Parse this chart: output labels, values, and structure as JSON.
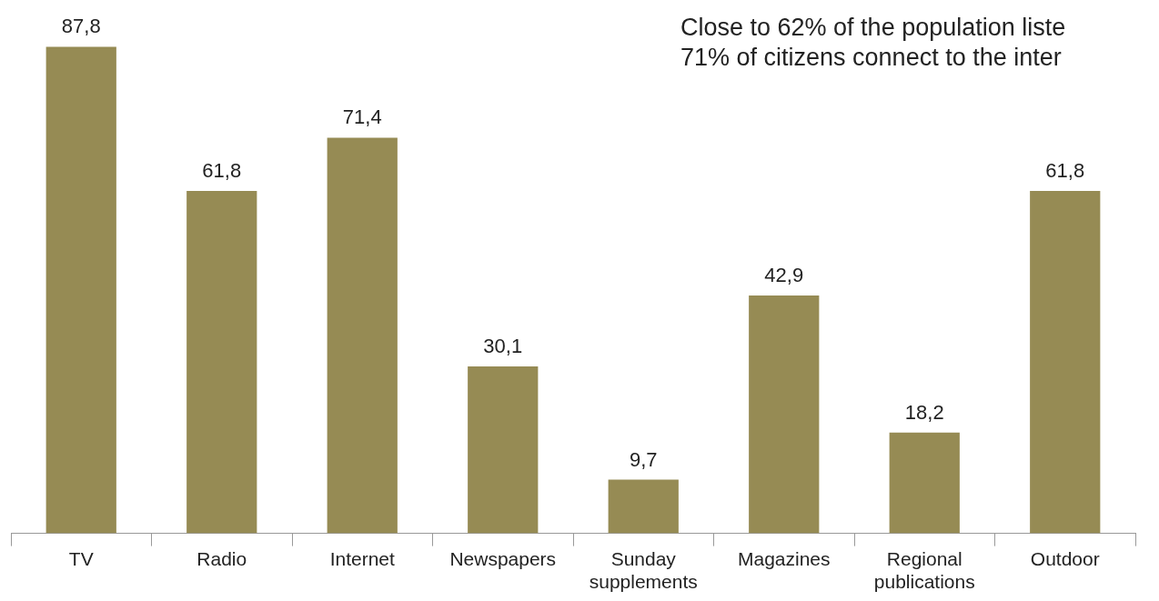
{
  "chart_data": {
    "type": "bar",
    "categories": [
      "TV",
      "Radio",
      "Internet",
      "Newspapers",
      "Sunday supplements",
      "Magazines",
      "Regional publications",
      "Outdoor"
    ],
    "values": [
      87.8,
      61.8,
      71.4,
      30.1,
      9.7,
      42.9,
      18.2,
      61.8
    ],
    "value_labels": [
      "87,8",
      "61,8",
      "71,4",
      "30,1",
      "9,7",
      "42,9",
      "18,2",
      "61,8"
    ],
    "color": "#968b54",
    "grid": false,
    "legend": false,
    "annotations": [
      "Close to 62% of the population liste",
      "71% of citizens connect to the inter"
    ]
  }
}
